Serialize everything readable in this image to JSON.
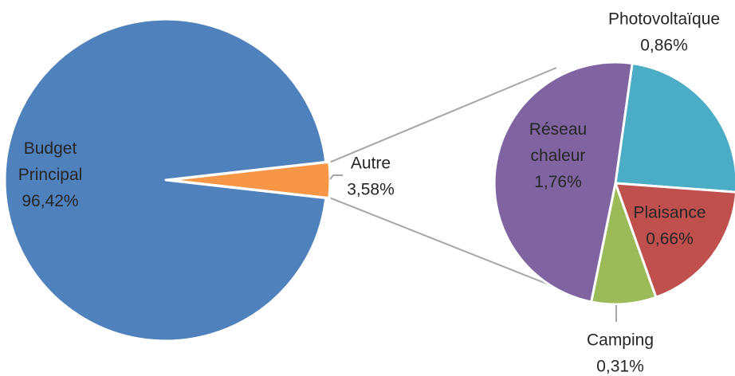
{
  "chart_data": {
    "type": "pie",
    "subtype": "pie-of-pie",
    "grid": false,
    "legend": "none",
    "main": {
      "slices": [
        {
          "id": "budget",
          "name_lines": [
            "Budget",
            "Principal"
          ],
          "label": "96,42%",
          "value": 96.42,
          "color": "#4F81BD"
        },
        {
          "id": "autre",
          "name_lines": [
            "Autre"
          ],
          "label": "3,58%",
          "value": 3.58,
          "color": "#F79646"
        }
      ]
    },
    "secondary": {
      "parent": "autre",
      "slices": [
        {
          "id": "photovoltaique",
          "name_lines": [
            "Photovoltaïque"
          ],
          "label": "0,86%",
          "value": 0.86,
          "color": "#4BACC6"
        },
        {
          "id": "plaisance",
          "name_lines": [
            "Plaisance"
          ],
          "label": "0,66%",
          "value": 0.66,
          "color": "#C0504D"
        },
        {
          "id": "camping",
          "name_lines": [
            "Camping"
          ],
          "label": "0,31%",
          "value": 0.31,
          "color": "#9BBB59"
        },
        {
          "id": "reseau",
          "name_lines": [
            "Réseau",
            "chaleur"
          ],
          "label": "1,76%",
          "value": 1.76,
          "color": "#8064A2"
        }
      ]
    }
  }
}
